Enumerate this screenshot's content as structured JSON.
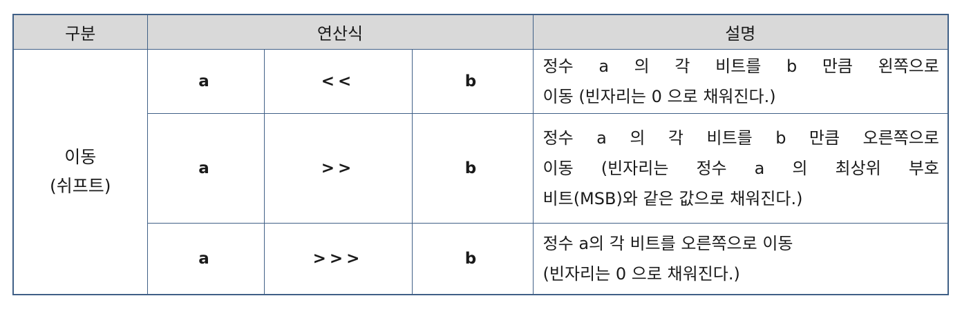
{
  "headers": {
    "category": "구분",
    "expression": "연산식",
    "description": "설명"
  },
  "category": {
    "line1": "이동",
    "line2": "(쉬프트)"
  },
  "rows": [
    {
      "left": "a",
      "operator": "<<",
      "right": "b",
      "description_lines": [
        "정수 a 의 각 비트를 b 만큼 왼쪽으로",
        "이동 (빈자리는 0 으로 채워진다.)"
      ]
    },
    {
      "left": "a",
      "operator": ">>",
      "right": "b",
      "description_lines": [
        "정수 a 의 각 비트를 b 만큼 오른쪽으로",
        "이동 (빈자리는 정수 a 의 최상위 부호",
        "비트(MSB)와 같은 값으로  채워진다.)"
      ]
    },
    {
      "left": "a",
      "operator": ">>>",
      "right": "b",
      "description_lines": [
        "정수 a의 각 비트를 오른쪽으로 이동",
        "(빈자리는 0 으로 채워진다.)"
      ]
    }
  ],
  "colors": {
    "border": "#3f5f86",
    "header_bg": "#d9d9d9"
  }
}
